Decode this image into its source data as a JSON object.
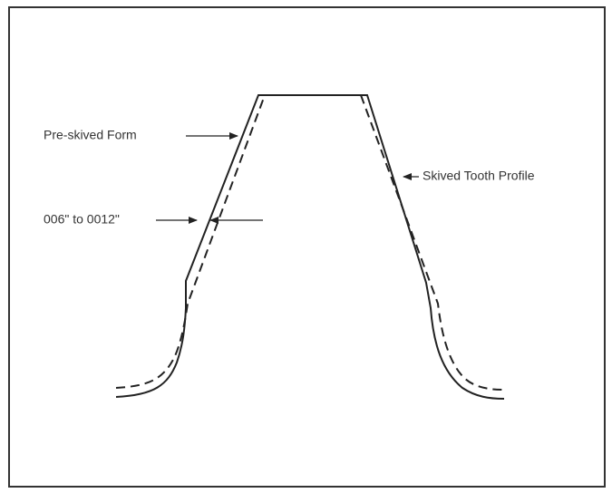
{
  "labels": {
    "pre_skived": "Pre-skived Form",
    "skived": "Skived Tooth Profile",
    "tolerance": "006\" to 0012\""
  }
}
